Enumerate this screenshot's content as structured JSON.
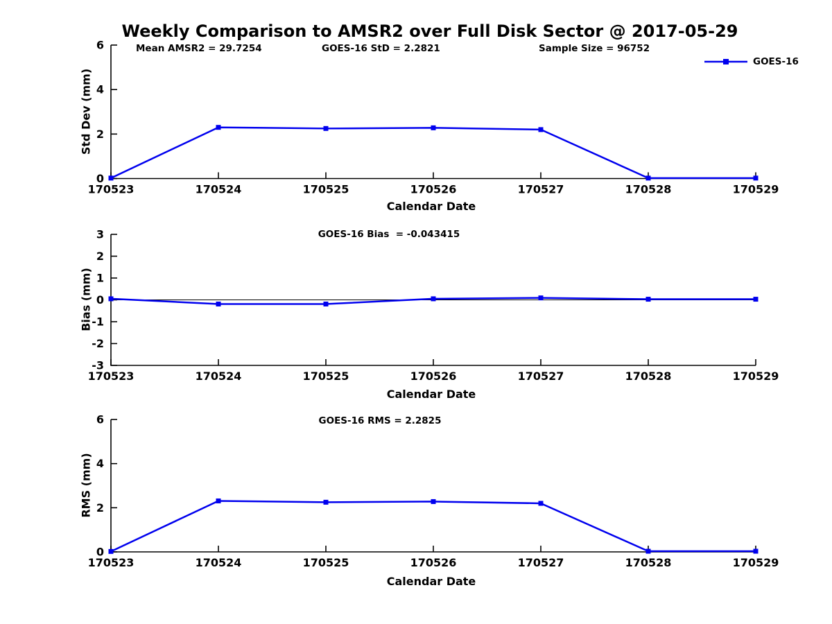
{
  "title": "Weekly Comparison to AMSR2 over Full Disk Sector @ 2017-05-29",
  "stats": {
    "mean_amsr2": "Mean AMSR2 = 29.7254",
    "goes16_std": "GOES-16 StD = 2.2821",
    "sample_size": "Sample Size = 96752"
  },
  "legend": {
    "label": "GOES-16",
    "color": "#0000ee"
  },
  "colors": {
    "line": "#0000ee",
    "axis": "#000000",
    "text": "#000000"
  },
  "chart_data": [
    {
      "type": "line",
      "title": "",
      "xlabel": "Calendar Date",
      "ylabel": "Std Dev (mm)",
      "categories": [
        "170523",
        "170524",
        "170525",
        "170526",
        "170527",
        "170528",
        "170529"
      ],
      "series": [
        {
          "name": "GOES-16",
          "color": "#0000ee",
          "marker": "square",
          "values": [
            0.02,
            2.3,
            2.25,
            2.28,
            2.2,
            0.02,
            0.02
          ]
        }
      ],
      "ylim": [
        0,
        6
      ],
      "yticks": [
        0,
        2,
        4,
        6
      ],
      "grid": false,
      "zero_line": false,
      "legend_position": "top-right-outside"
    },
    {
      "type": "line",
      "title": "GOES-16 Bias  = -0.043415",
      "xlabel": "Calendar Date",
      "ylabel": "Bias (mm)",
      "categories": [
        "170523",
        "170524",
        "170525",
        "170526",
        "170527",
        "170528",
        "170529"
      ],
      "series": [
        {
          "name": "GOES-16",
          "color": "#0000ee",
          "marker": "square",
          "values": [
            0.05,
            -0.19,
            -0.19,
            0.05,
            0.09,
            0.03,
            0.03
          ]
        }
      ],
      "ylim": [
        -3,
        3
      ],
      "yticks": [
        -3,
        -2,
        -1,
        0,
        1,
        2,
        3
      ],
      "grid": false,
      "zero_line": true
    },
    {
      "type": "line",
      "title": "GOES-16 RMS = 2.2825",
      "xlabel": "Calendar Date",
      "ylabel": "RMS (mm)",
      "categories": [
        "170523",
        "170524",
        "170525",
        "170526",
        "170527",
        "170528",
        "170529"
      ],
      "series": [
        {
          "name": "GOES-16",
          "color": "#0000ee",
          "marker": "square",
          "values": [
            0.02,
            2.31,
            2.25,
            2.28,
            2.2,
            0.03,
            0.03
          ]
        }
      ],
      "ylim": [
        0,
        6
      ],
      "yticks": [
        0,
        2,
        4,
        6
      ],
      "grid": false,
      "zero_line": false
    }
  ]
}
